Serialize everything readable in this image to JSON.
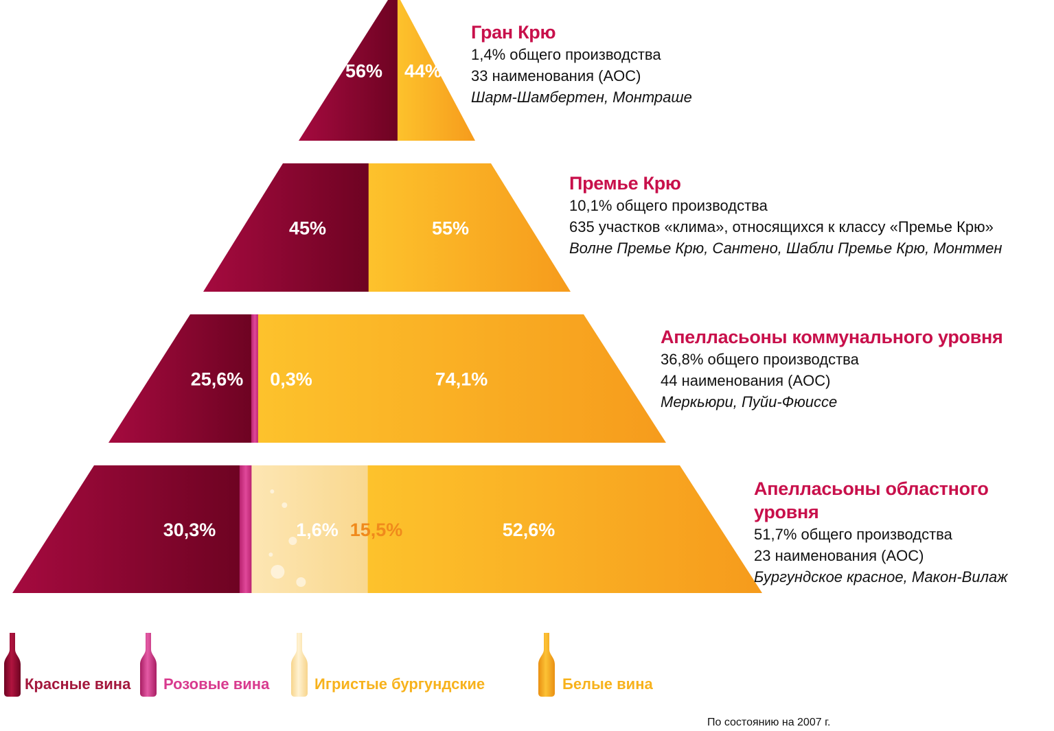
{
  "colors": {
    "red": "#8b0a2f",
    "rose": "#d5388c",
    "sparkling": "#fbe2ae",
    "white": "#fbb21f",
    "title": "#c8104b"
  },
  "legend": [
    {
      "key": "red",
      "label": "Красные вина",
      "color": "#a3173c",
      "icon": "red-wine-bottle-icon"
    },
    {
      "key": "rose",
      "label": "Розовые вина",
      "color": "#d83a8e",
      "icon": "rose-wine-bottle-icon"
    },
    {
      "key": "sparkling",
      "label": "Игристые бургундские",
      "color": "#f7b21c",
      "icon": "sparkling-wine-bottle-icon"
    },
    {
      "key": "white",
      "label": "Белые вина",
      "color": "#f7b21c",
      "icon": "white-wine-bottle-icon"
    }
  ],
  "tiers": [
    {
      "title": "Гран Крю",
      "share": "1,4% общего производства",
      "detail": "33 наименования (AOC)",
      "examples": "Шарм-Шамбертен, Монтраше",
      "segments": [
        {
          "type": "red",
          "value": 56,
          "label": "56%"
        },
        {
          "type": "white",
          "value": 44,
          "label": "44%"
        }
      ]
    },
    {
      "title": "Премье Крю",
      "share": "10,1% общего производства",
      "detail": "635 участков «клима», относящихся к классу «Премье Крю»",
      "examples": "Волне Премье Крю, Сантено, Шабли Премье Крю, Монтмен",
      "segments": [
        {
          "type": "red",
          "value": 45,
          "label": "45%"
        },
        {
          "type": "white",
          "value": 55,
          "label": "55%"
        }
      ]
    },
    {
      "title": "Апелласьоны коммунального уровня",
      "share": "36,8% общего производства",
      "detail": "44 наименования (AOC)",
      "examples": "Меркьюри, Пуйи-Фюиссе",
      "segments": [
        {
          "type": "red",
          "value": 25.6,
          "label": "25,6%"
        },
        {
          "type": "rose",
          "value": 0.3,
          "label": "0,3%"
        },
        {
          "type": "white",
          "value": 74.1,
          "label": "74,1%"
        }
      ]
    },
    {
      "title": "Апелласьоны областного уровня",
      "share": "51,7% общего производства",
      "detail": "23 наименования (AOC)",
      "examples": "Бургундское красное, Макон-Вилаж",
      "segments": [
        {
          "type": "red",
          "value": 30.3,
          "label": "30,3%"
        },
        {
          "type": "rose",
          "value": 1.6,
          "label": "1,6%"
        },
        {
          "type": "sparkling",
          "value": 15.5,
          "label": "15,5%"
        },
        {
          "type": "white",
          "value": 52.6,
          "label": "52,6%"
        }
      ]
    }
  ],
  "footnote": "По состоянию на 2007 г."
}
